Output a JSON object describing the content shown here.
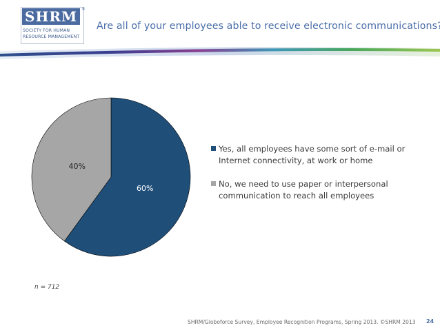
{
  "logo": {
    "mark": "SHRM",
    "reg": "®",
    "line1": "SOCIETY FOR HUMAN",
    "line2": "RESOURCE MANAGEMENT"
  },
  "header": {
    "title": "Are all of your employees able to receive electronic communications?"
  },
  "colors": {
    "yes": "#1f4e79",
    "no": "#a6a6a6",
    "title": "#4a6ea8"
  },
  "chart_data": {
    "type": "pie",
    "title": "Are all of your employees able to receive electronic communications?",
    "categories": [
      "Yes, all employees have some sort of e-mail or Internet connectivity, at work or home",
      "No, we need to use paper or interpersonal communication to reach all employees"
    ],
    "values": [
      60,
      40
    ],
    "data_labels": [
      "60%",
      "40%"
    ],
    "legend_position": "right"
  },
  "legend": {
    "items": [
      "Yes, all employees have some sort of e-mail or Internet connectivity, at work or home",
      "No, we need to use paper or interpersonal communication to reach all employees"
    ]
  },
  "note": "n = 712",
  "footer": {
    "source": "SHRM/Globoforce Survey, Employee Recognition Programs, Spring 2013. ©SHRM 2013",
    "page": "24"
  }
}
